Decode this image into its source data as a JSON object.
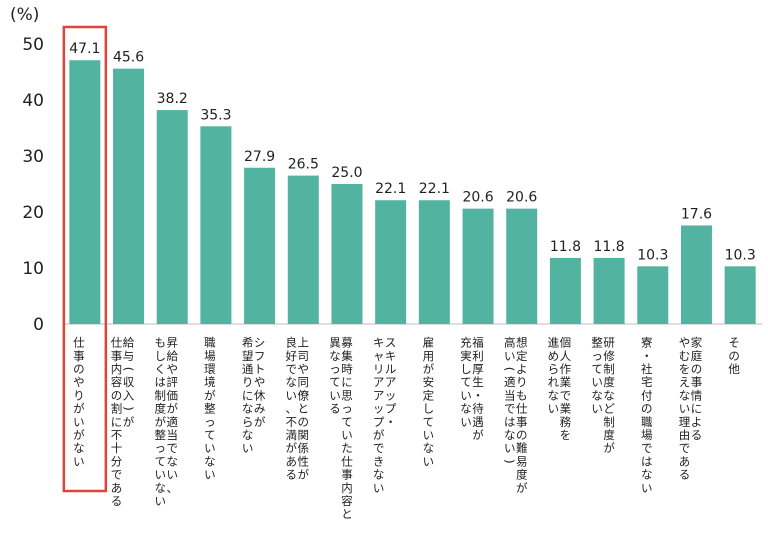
{
  "chart_data": {
    "type": "bar",
    "unit_label": "(%)",
    "ylim": [
      0,
      50
    ],
    "yticks": [
      0,
      10,
      20,
      30,
      40,
      50
    ],
    "grid": false,
    "bar_color": "#52b3a1",
    "highlight_color": "#d9453b",
    "highlight_index": 0,
    "categories": [
      "仕事のやりがいがない",
      "給与（収入）が仕事内容の割に不十分である",
      "昇給や評価が適当でない、もしくは制度が整っていない",
      "職場環境が整っていない",
      "シフトや休みが希望通りにならない",
      "上司や同僚との関係性が良好でない、不満がある",
      "募集時に思っていた仕事内容と異なっている",
      "スキルアップ・キャリアアップができない",
      "雇用が安定していない",
      "福利厚生・待遇が充実していない",
      "想定よりも仕事の難易度が高い（適当ではない）",
      "個人作業で業務を進められない",
      "研修制度など制度が整っていない",
      "寮・社宅付の職場ではない",
      "家庭の事情によるやむをえない理由である",
      "その他"
    ],
    "category_lines": [
      [
        "仕事のやりがいがない"
      ],
      [
        "給与（収入）が",
        "仕事内容の割に不十分である"
      ],
      [
        "昇給や評価が適当でない、",
        "もしくは制度が整っていない"
      ],
      [
        "職場環境が整っていない"
      ],
      [
        "シフトや休みが",
        "希望通りにならない"
      ],
      [
        "上司や同僚との関係性が",
        "良好でない、不満がある"
      ],
      [
        "募集時に思っていた仕事内容と",
        "異なっている"
      ],
      [
        "スキルアップ・",
        "キャリアアップができない"
      ],
      [
        "雇用が安定していない"
      ],
      [
        "福利厚生・待遇が",
        "充実していない"
      ],
      [
        "想定よりも仕事の難易度が",
        "高い（適当ではない）"
      ],
      [
        "個人作業で業務を",
        "進められない"
      ],
      [
        "研修制度など制度が",
        "整っていない"
      ],
      [
        "寮・社宅付の職場ではない"
      ],
      [
        "家庭の事情による",
        "やむをえない理由である"
      ],
      [
        "その他"
      ]
    ],
    "values": [
      47.1,
      45.6,
      38.2,
      35.3,
      27.9,
      26.5,
      25.0,
      22.1,
      22.1,
      20.6,
      20.6,
      11.8,
      11.8,
      10.3,
      17.6,
      10.3
    ],
    "value_labels": [
      "47.1",
      "45.6",
      "38.2",
      "35.3",
      "27.9",
      "26.5",
      "25.0",
      "22.1",
      "22.1",
      "20.6",
      "20.6",
      "11.8",
      "11.8",
      "10.3",
      "17.6",
      "10.3"
    ]
  }
}
